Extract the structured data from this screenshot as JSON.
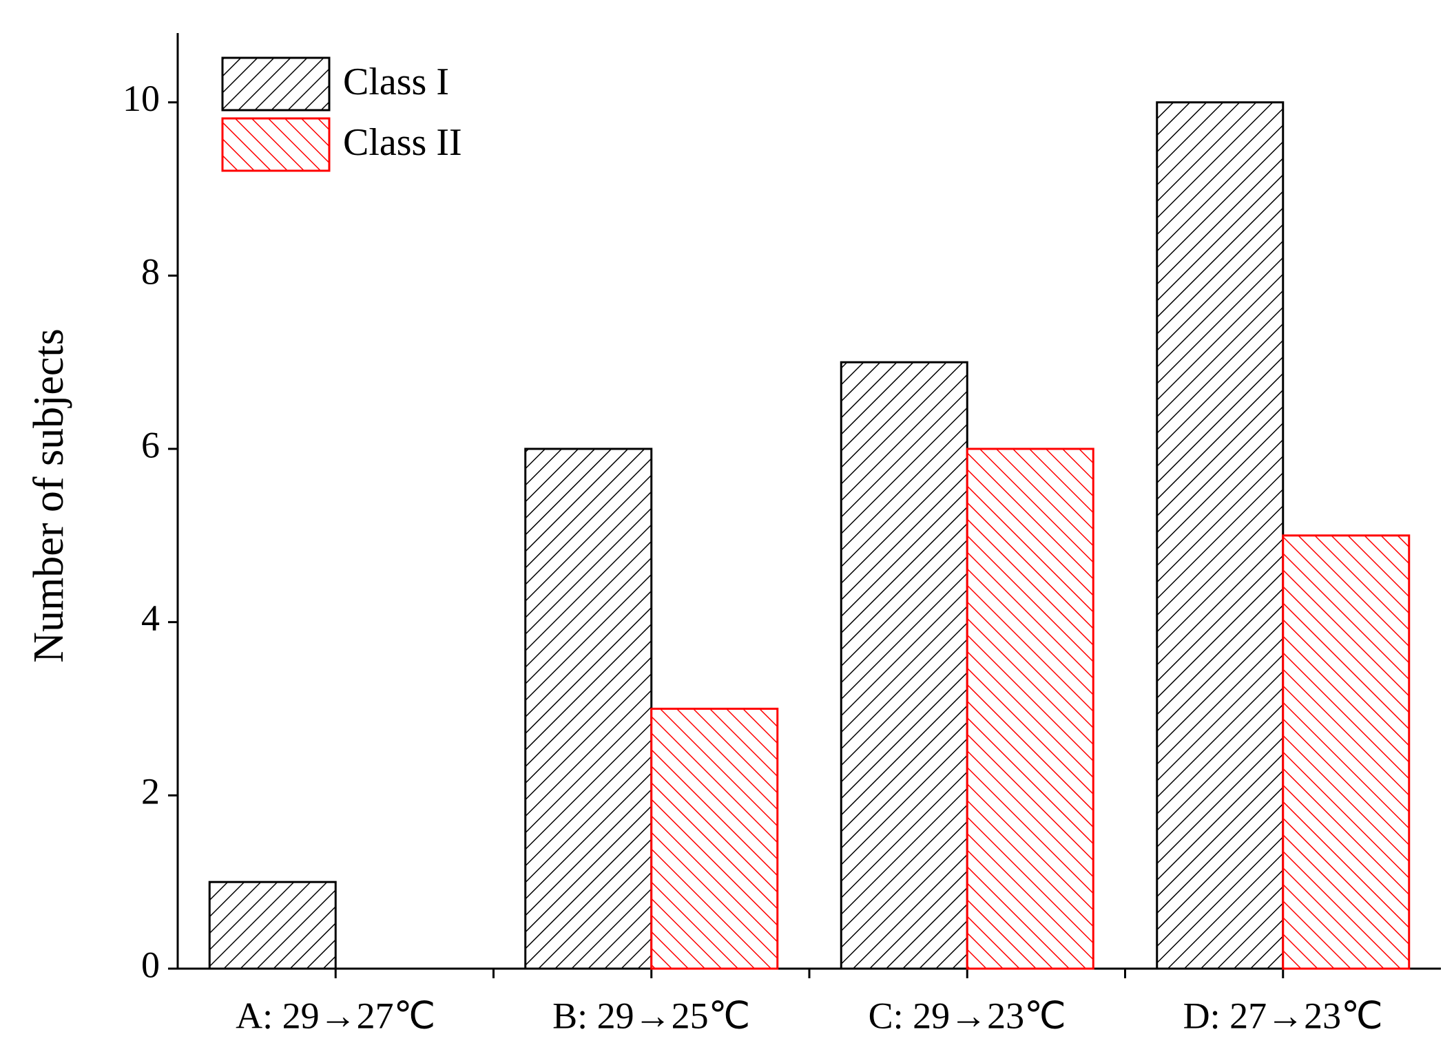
{
  "chart_data": {
    "type": "bar",
    "y_label": "Number of subjects",
    "categories": [
      "A: 29→27℃",
      "B: 29→25℃",
      "C: 29→23℃",
      "D: 27→23℃"
    ],
    "series": [
      {
        "name": "Class I",
        "color": "#000000",
        "values": [
          1,
          6,
          7,
          10
        ]
      },
      {
        "name": "Class II",
        "color": "#ff0000",
        "values": [
          0,
          3,
          6,
          5
        ]
      }
    ],
    "ylim": [
      0,
      10.8
    ],
    "yticks": [
      0,
      2,
      4,
      6,
      8,
      10
    ],
    "grid": false,
    "legend": "upper left"
  }
}
